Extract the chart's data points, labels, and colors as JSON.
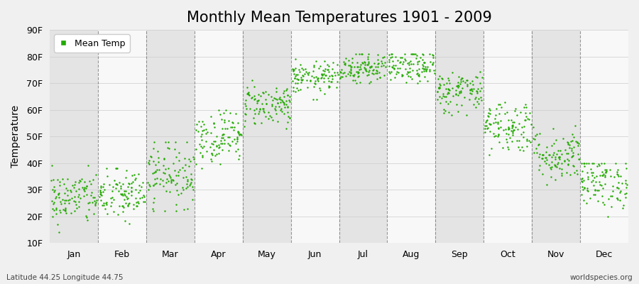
{
  "title": "Monthly Mean Temperatures 1901 - 2009",
  "ylabel": "Temperature",
  "xlabel_months": [
    "Jan",
    "Feb",
    "Mar",
    "Apr",
    "May",
    "Jun",
    "Jul",
    "Aug",
    "Sep",
    "Oct",
    "Nov",
    "Dec"
  ],
  "footer_left": "Latitude 44.25 Longitude 44.75",
  "footer_right": "worldspecies.org",
  "legend_label": "Mean Temp",
  "ylim": [
    10,
    90
  ],
  "ytick_labels": [
    "10F",
    "20F",
    "30F",
    "40F",
    "50F",
    "60F",
    "70F",
    "80F",
    "90F"
  ],
  "ytick_values": [
    10,
    20,
    30,
    40,
    50,
    60,
    70,
    80,
    90
  ],
  "dot_color": "#22AA00",
  "dot_size": 3,
  "background_color": "#f0f0f0",
  "band_colors": [
    "#e4e4e4",
    "#f8f8f8"
  ],
  "title_fontsize": 15,
  "axis_fontsize": 10,
  "tick_fontsize": 9,
  "monthly_means": [
    27,
    28,
    36,
    50,
    62,
    72,
    76,
    76,
    67,
    54,
    43,
    33
  ],
  "monthly_stds": [
    5,
    5,
    6,
    5,
    4,
    3,
    3,
    3,
    4,
    5,
    5,
    5
  ],
  "monthly_min": [
    14,
    10,
    22,
    38,
    53,
    64,
    70,
    70,
    58,
    42,
    32,
    20
  ],
  "monthly_max": [
    39,
    38,
    48,
    60,
    71,
    79,
    81,
    81,
    76,
    64,
    57,
    40
  ],
  "n_years": 109,
  "seed": 42
}
